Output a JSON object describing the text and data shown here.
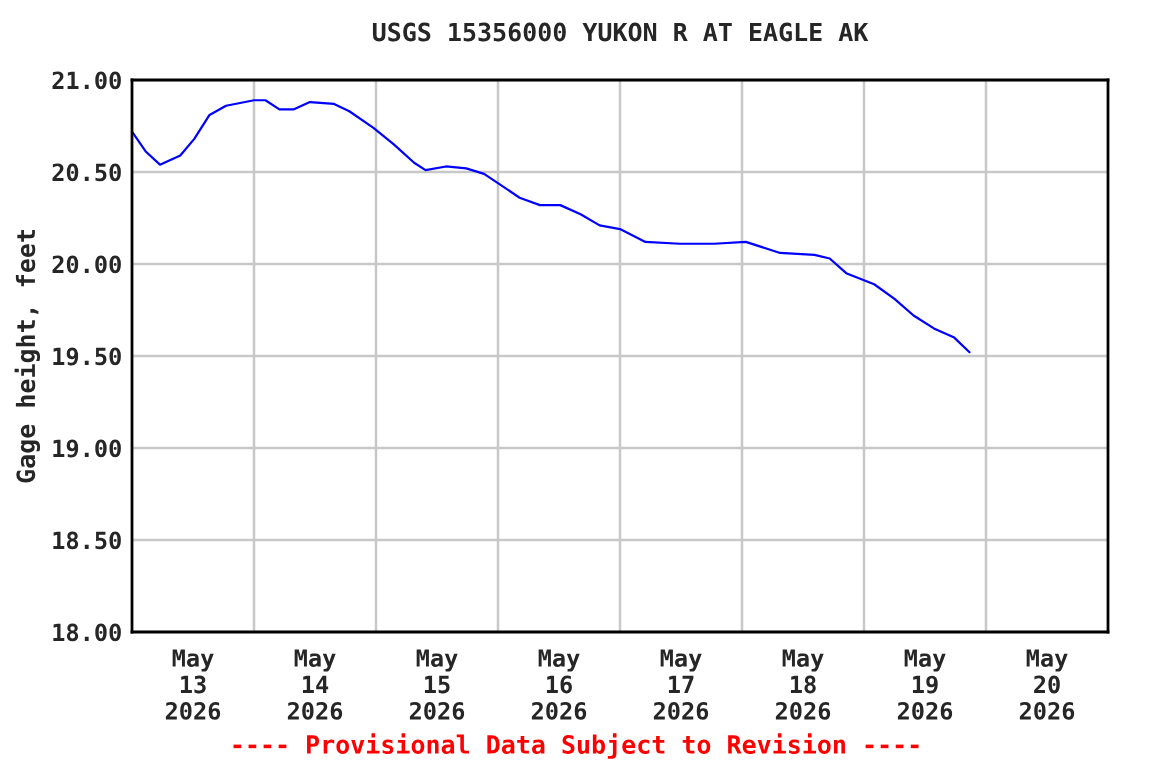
{
  "chart_data": {
    "type": "line",
    "title": "USGS 15356000 YUKON R AT EAGLE AK",
    "ylabel": "Gage height, feet",
    "annotations": [
      "---- Provisional Data Subject to Revision ----"
    ],
    "x": [
      "2026-05-13T00:00",
      "2026-05-13T02:45",
      "2026-05-13T05:30",
      "2026-05-13T09:30",
      "2026-05-13T12:15",
      "2026-05-13T15:15",
      "2026-05-13T18:30",
      "2026-05-14T00:00",
      "2026-05-14T02:15",
      "2026-05-14T05:00",
      "2026-05-14T07:45",
      "2026-05-14T11:00",
      "2026-05-14T15:45",
      "2026-05-14T18:45",
      "2026-05-14T23:30",
      "2026-05-15T03:30",
      "2026-05-15T07:30",
      "2026-05-15T09:45",
      "2026-05-15T13:45",
      "2026-05-15T17:45",
      "2026-05-15T21:15",
      "2026-05-16T00:30",
      "2026-05-16T04:15",
      "2026-05-16T08:15",
      "2026-05-16T12:15",
      "2026-05-16T16:15",
      "2026-05-16T20:00",
      "2026-05-17T00:00",
      "2026-05-17T05:00",
      "2026-05-17T11:45",
      "2026-05-17T18:30",
      "2026-05-18T00:45",
      "2026-05-18T07:30",
      "2026-05-18T14:15",
      "2026-05-18T17:15",
      "2026-05-18T20:30",
      "2026-05-19T02:00",
      "2026-05-19T06:00",
      "2026-05-19T09:45",
      "2026-05-19T13:45",
      "2026-05-19T17:45",
      "2026-05-19T20:45"
    ],
    "series": [
      {
        "color": "#0000ff",
        "values": [
          20.72,
          20.61,
          20.54,
          20.59,
          20.68,
          20.81,
          20.86,
          20.89,
          20.89,
          20.84,
          20.84,
          20.88,
          20.87,
          20.83,
          20.74,
          20.65,
          20.55,
          20.51,
          20.53,
          20.52,
          20.49,
          20.43,
          20.36,
          20.32,
          20.32,
          20.27,
          20.21,
          20.19,
          20.12,
          20.11,
          20.11,
          20.12,
          20.06,
          20.05,
          20.03,
          19.95,
          19.89,
          19.81,
          19.72,
          19.65,
          19.6,
          19.52
        ]
      }
    ],
    "xlim": [
      "2026-05-13T00:00",
      "2026-05-21T00:00"
    ],
    "xticks": [
      {
        "value": "2026-05-13T12:00",
        "label": "May\n13\n2026"
      },
      {
        "value": "2026-05-14T12:00",
        "label": "May\n14\n2026"
      },
      {
        "value": "2026-05-15T12:00",
        "label": "May\n15\n2026"
      },
      {
        "value": "2026-05-16T12:00",
        "label": "May\n16\n2026"
      },
      {
        "value": "2026-05-17T12:00",
        "label": "May\n17\n2026"
      },
      {
        "value": "2026-05-18T12:00",
        "label": "May\n18\n2026"
      },
      {
        "value": "2026-05-19T12:00",
        "label": "May\n19\n2026"
      },
      {
        "value": "2026-05-20T12:00",
        "label": "May\n20\n2026"
      },
      {
        "value": "2026-05-14T00:00",
        "label": null
      },
      {
        "value": "2026-05-15T00:00",
        "label": null
      },
      {
        "value": "2026-05-16T00:00",
        "label": null
      },
      {
        "value": "2026-05-17T00:00",
        "label": null
      },
      {
        "value": "2026-05-18T00:00",
        "label": null
      },
      {
        "value": "2026-05-19T00:00",
        "label": null
      },
      {
        "value": "2026-05-20T00:00",
        "label": null
      }
    ],
    "ylim": [
      18.0,
      21.0
    ],
    "yticks": [
      {
        "value": 18.0,
        "label": "18.00"
      },
      {
        "value": 18.5,
        "label": "18.50"
      },
      {
        "value": 19.0,
        "label": "19.00"
      },
      {
        "value": 19.5,
        "label": "19.50"
      },
      {
        "value": 20.0,
        "label": "20.00"
      },
      {
        "value": 20.5,
        "label": "20.50"
      },
      {
        "value": 21.0,
        "label": "21.00"
      }
    ],
    "grid": true,
    "legend": false,
    "marker": "none",
    "line_style": "solid"
  }
}
